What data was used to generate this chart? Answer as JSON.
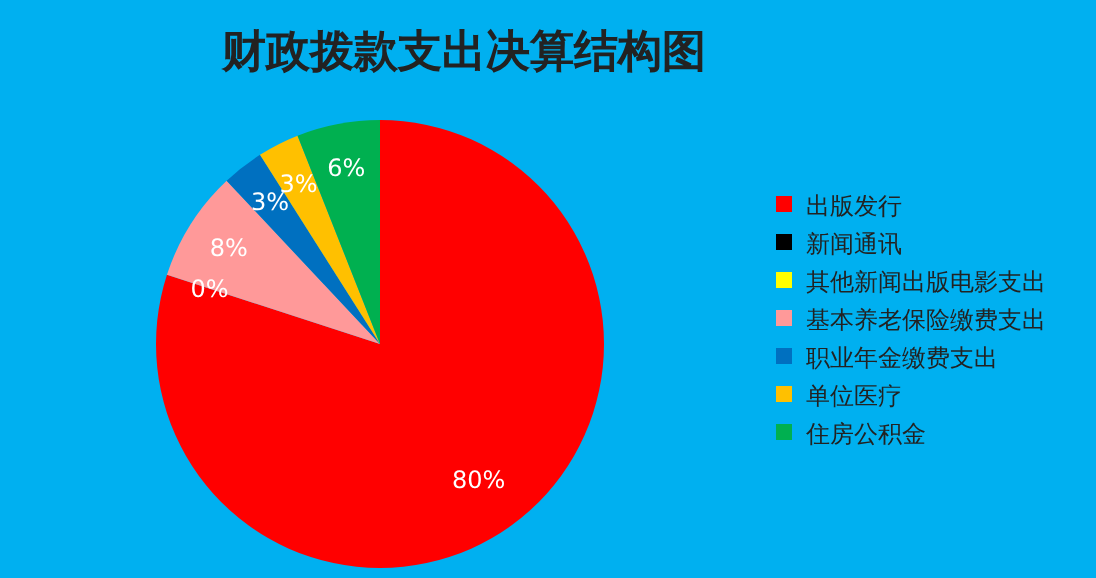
{
  "chart_data": {
    "type": "pie",
    "title": "财政拨款支出决算结构图",
    "categories": [
      "出版发行",
      "新闻通讯",
      "其他新闻出版电影支出",
      "基本养老保险缴费支出",
      "职业年金缴费支出",
      "单位医疗",
      "住房公积金"
    ],
    "values": [
      80,
      0,
      0,
      8,
      3,
      3,
      6
    ],
    "colors": [
      "#ff0000",
      "#000000",
      "#ffff00",
      "#ff9999",
      "#0070c0",
      "#ffc000",
      "#00b050"
    ],
    "value_labels": [
      "80%",
      "0%",
      null,
      "8%",
      "3%",
      "3%",
      "6%"
    ],
    "legend": "right"
  }
}
